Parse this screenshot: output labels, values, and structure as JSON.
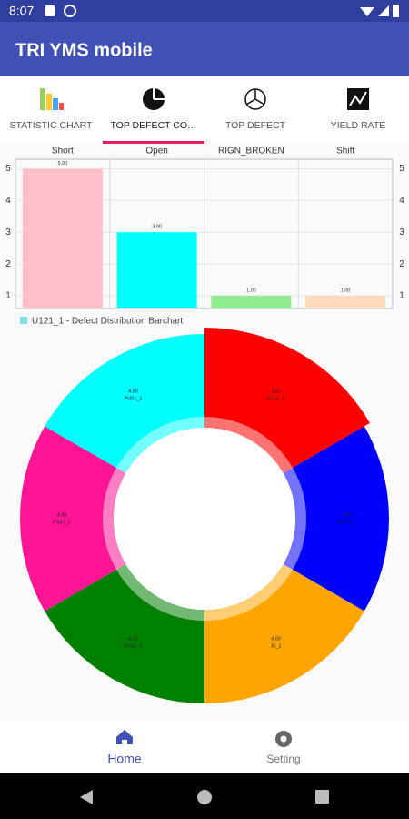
{
  "status_bar": {
    "time": "8:07"
  },
  "app_bar": {
    "title": "TRI YMS mobile"
  },
  "tabs": [
    {
      "label": "STATISTIC CHART"
    },
    {
      "label": "TOP DEFECT CO…"
    },
    {
      "label": "TOP DEFECT"
    },
    {
      "label": "YIELD RATE"
    }
  ],
  "chart_data": [
    {
      "type": "bar",
      "categories": [
        "Short",
        "Open",
        "RIGN_BROKEN",
        "Shift"
      ],
      "series": [
        {
          "name": "U121_1 - Defect Distribution Barchart",
          "color": "#80deea",
          "values": [
            5,
            3,
            1,
            1
          ],
          "value_labels": [
            "5.00",
            "3.00",
            "1.00",
            "1.00"
          ]
        }
      ],
      "bar_colors": [
        "#ffc0cb",
        "#00ffff",
        "#90ee90",
        "#ffdab9"
      ],
      "ylim": [
        0.6,
        5.3
      ],
      "yticks": [
        1,
        2,
        3,
        4,
        5
      ],
      "grid": true
    },
    {
      "type": "pie",
      "categories": [
        "U121_1",
        "U171_1",
        "J5_1",
        "PU25_1",
        "PS01_1",
        "PU01_1"
      ],
      "values": [
        4,
        4,
        4,
        4,
        4,
        4
      ],
      "value_labels": [
        "4.00",
        "4.00",
        "4.00",
        "4.00",
        "4.00",
        "4.00"
      ],
      "colors": [
        "#ff0000",
        "#0000ff",
        "#ffa500",
        "#008000",
        "#ff1493",
        "#00ffff"
      ]
    }
  ],
  "bottom_nav": [
    {
      "label": "Home"
    },
    {
      "label": "Setting"
    }
  ]
}
